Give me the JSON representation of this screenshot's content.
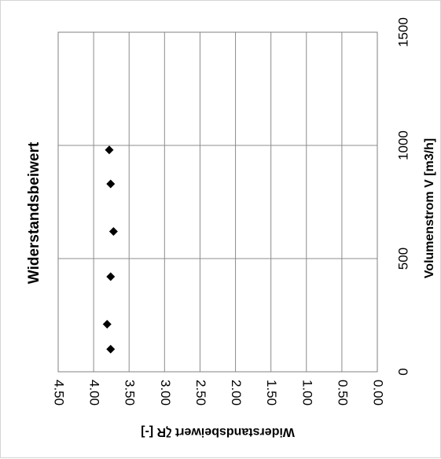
{
  "chart_data": {
    "type": "scatter",
    "title": "Widerstandsbeiwert",
    "xlabel": "Volumenstrom V [m3/h]",
    "ylabel": "Widerstandsbeiwert ζR [-]",
    "xlim": [
      0,
      1500
    ],
    "ylim": [
      0.0,
      4.5
    ],
    "x_ticks": [
      "0",
      "500",
      "1000",
      "1500"
    ],
    "y_ticks": [
      "0.00",
      "0.50",
      "1.00",
      "1.50",
      "2.00",
      "2.50",
      "3.00",
      "3.50",
      "4.00",
      "4.50"
    ],
    "grid": true,
    "marker": "diamond",
    "marker_color": "#000000",
    "series": [
      {
        "points": [
          {
            "x": 100,
            "y": 3.76
          },
          {
            "x": 210,
            "y": 3.81
          },
          {
            "x": 420,
            "y": 3.76
          },
          {
            "x": 620,
            "y": 3.72
          },
          {
            "x": 830,
            "y": 3.76
          },
          {
            "x": 980,
            "y": 3.78
          }
        ]
      }
    ]
  }
}
